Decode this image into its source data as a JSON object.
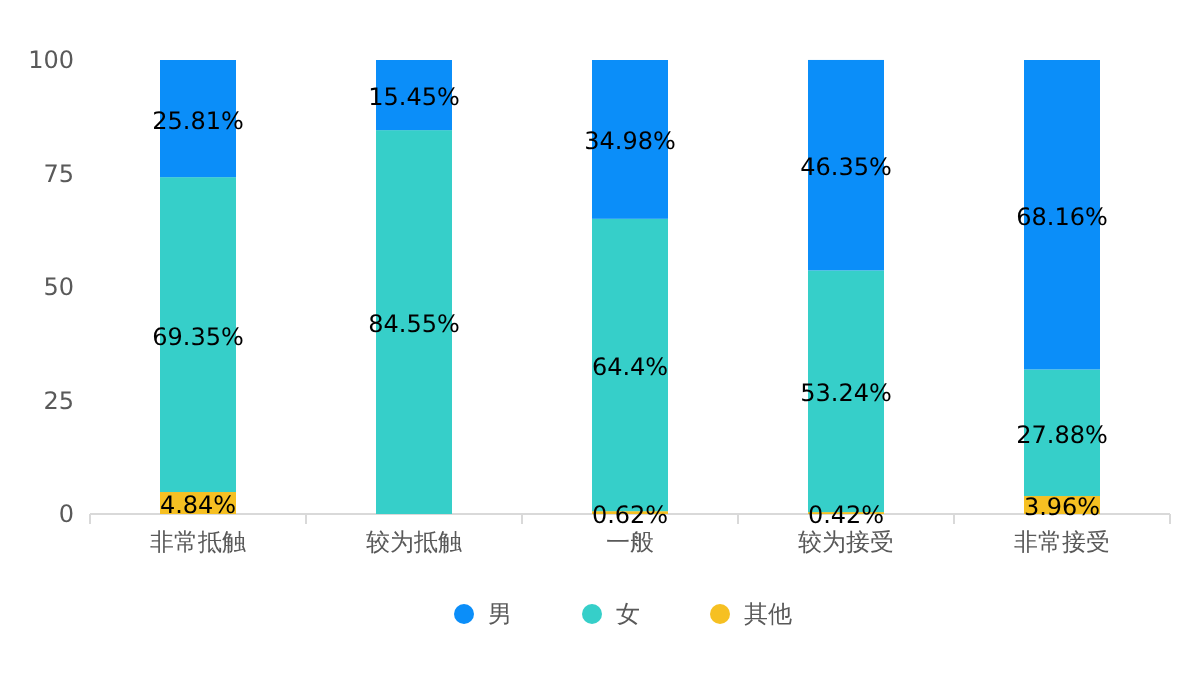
{
  "chart_data": {
    "type": "bar",
    "stacked": true,
    "categories": [
      "非常抵触",
      "较为抵触",
      "一般",
      "较为接受",
      "非常接受"
    ],
    "ylim": [
      0,
      100
    ],
    "yticks": [
      0,
      25,
      50,
      75,
      100
    ],
    "grid": false,
    "legend": "bottom",
    "series": [
      {
        "name": "其他",
        "color": "#f6c022",
        "values": [
          4.84,
          0,
          0.62,
          0.42,
          3.96
        ],
        "value_labels": [
          "4.84%",
          null,
          "0.62%",
          "0.42%",
          "3.96%"
        ]
      },
      {
        "name": "女",
        "color": "#36cfc9",
        "values": [
          69.35,
          84.55,
          64.4,
          53.24,
          27.88
        ],
        "value_labels": [
          "69.35%",
          "84.55%",
          "64.4%",
          "53.24%",
          "27.88%"
        ]
      },
      {
        "name": "男",
        "color": "#0b8ef9",
        "values": [
          25.81,
          15.45,
          34.98,
          46.35,
          68.16
        ],
        "value_labels": [
          "25.81%",
          "15.45%",
          "34.98%",
          "46.35%",
          "68.16%"
        ]
      }
    ]
  }
}
